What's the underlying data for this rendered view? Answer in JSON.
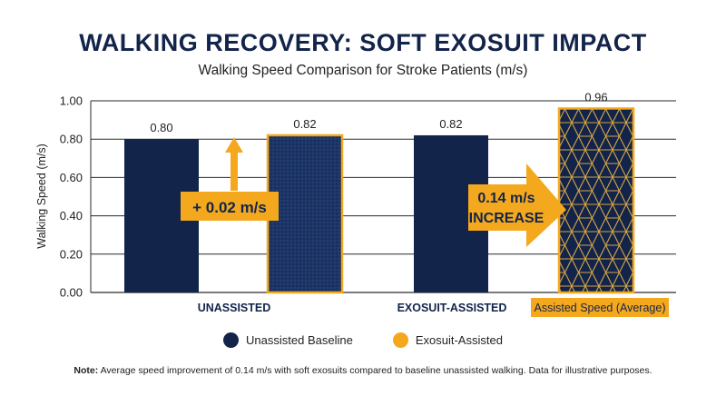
{
  "title": "WALKING RECOVERY: SOFT EXOSUIT IMPACT",
  "subtitle": "Walking Speed Comparison for Stroke Patients (m/s)",
  "colors": {
    "navy": "#13244a",
    "orange": "#f4a81e",
    "grid": "#2a2a2a"
  },
  "chart_data": {
    "type": "bar",
    "ylabel": "Walking Speed (m/s)",
    "ylim": [
      0,
      1.0
    ],
    "yticks": [
      "0.00",
      "0.20",
      "0.40",
      "0.60",
      "0.80",
      "1.00"
    ],
    "categories": [
      "UNASSISTED",
      "EXOSUIT-ASSISTED"
    ],
    "highlight_label": "Assisted Speed (Average)",
    "series": [
      {
        "name": "Unassisted Baseline",
        "values": [
          0.8,
          0.82
        ],
        "labels": [
          "0.80",
          "0.82"
        ]
      },
      {
        "name": "Exosuit-Assisted",
        "values": [
          0.82,
          0.96
        ],
        "labels": [
          "0.82",
          "0.96"
        ]
      }
    ],
    "annotations": [
      {
        "text": "+ 0.02 m/s",
        "direction": "up"
      },
      {
        "text_lines": [
          "0.14 m/s",
          "INCREASE"
        ],
        "direction": "right"
      }
    ],
    "grid": true
  },
  "note": {
    "label": "Note:",
    "text": " Average speed improvement of 0.14 m/s with soft exosuits compared to baseline unassisted walking. Data for illustrative purposes."
  }
}
